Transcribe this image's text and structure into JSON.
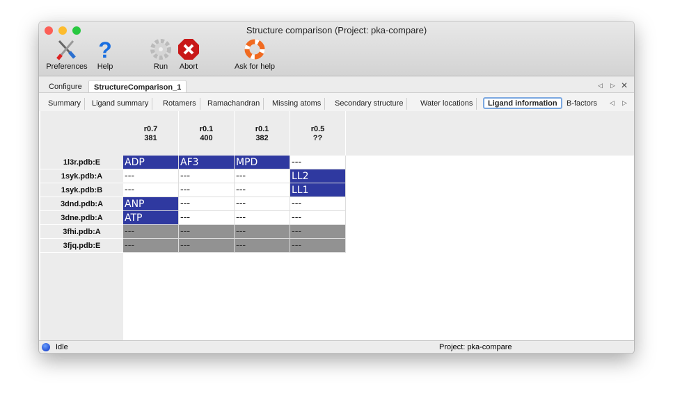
{
  "window": {
    "title": "Structure comparison (Project: pka-compare)"
  },
  "toolbar": [
    {
      "label": "Preferences",
      "icon": "tools-icon"
    },
    {
      "label": "Help",
      "icon": "help-icon"
    },
    {
      "label": "Run",
      "icon": "gear-icon"
    },
    {
      "label": "Abort",
      "icon": "abort-icon"
    },
    {
      "label": "Ask for help",
      "icon": "lifebuoy-icon"
    }
  ],
  "main_tabs": [
    {
      "label": "Configure"
    },
    {
      "label": "StructureComparison_1",
      "active": true
    }
  ],
  "sub_tabs": [
    {
      "label": "Summary"
    },
    {
      "label": "Ligand summary"
    },
    {
      "label": "Rotamers"
    },
    {
      "label": "Ramachandran"
    },
    {
      "label": "Missing atoms"
    },
    {
      "label": "Secondary structure"
    },
    {
      "label": "Water locations"
    },
    {
      "label": "Ligand information",
      "active": true
    },
    {
      "label": "B-factors"
    }
  ],
  "table": {
    "columns": [
      {
        "line1": "r0.7",
        "line2": "381"
      },
      {
        "line1": "r0.1",
        "line2": "400"
      },
      {
        "line1": "r0.1",
        "line2": "382"
      },
      {
        "line1": "r0.5",
        "line2": "??"
      }
    ],
    "rows": [
      {
        "label": "1l3r.pdb:E",
        "cells": [
          "ADP",
          "AF3",
          "MPD",
          "---"
        ],
        "state": [
          "ligand",
          "ligand",
          "ligand",
          "empty"
        ]
      },
      {
        "label": "1syk.pdb:A",
        "cells": [
          "---",
          "---",
          "---",
          "LL2"
        ],
        "state": [
          "empty",
          "empty",
          "empty",
          "ligand"
        ]
      },
      {
        "label": "1syk.pdb:B",
        "cells": [
          "---",
          "---",
          "---",
          "LL1"
        ],
        "state": [
          "empty",
          "empty",
          "empty",
          "ligand"
        ]
      },
      {
        "label": "3dnd.pdb:A",
        "cells": [
          "ANP",
          "---",
          "---",
          "---"
        ],
        "state": [
          "ligand",
          "empty",
          "empty",
          "empty"
        ]
      },
      {
        "label": "3dne.pdb:A",
        "cells": [
          "ATP",
          "---",
          "---",
          "---"
        ],
        "state": [
          "ligand",
          "empty",
          "empty",
          "empty"
        ]
      },
      {
        "label": "3fhi.pdb:A",
        "cells": [
          "---",
          "---",
          "---",
          "---"
        ],
        "state": [
          "missing",
          "missing",
          "missing",
          "missing"
        ]
      },
      {
        "label": "3fjq.pdb:E",
        "cells": [
          "---",
          "---",
          "---",
          "---"
        ],
        "state": [
          "missing",
          "missing",
          "missing",
          "missing"
        ]
      }
    ]
  },
  "status": {
    "text": "Idle",
    "project": "Project: pka-compare"
  },
  "colors": {
    "ligand": "#2f39a0",
    "missing": "#929292"
  }
}
